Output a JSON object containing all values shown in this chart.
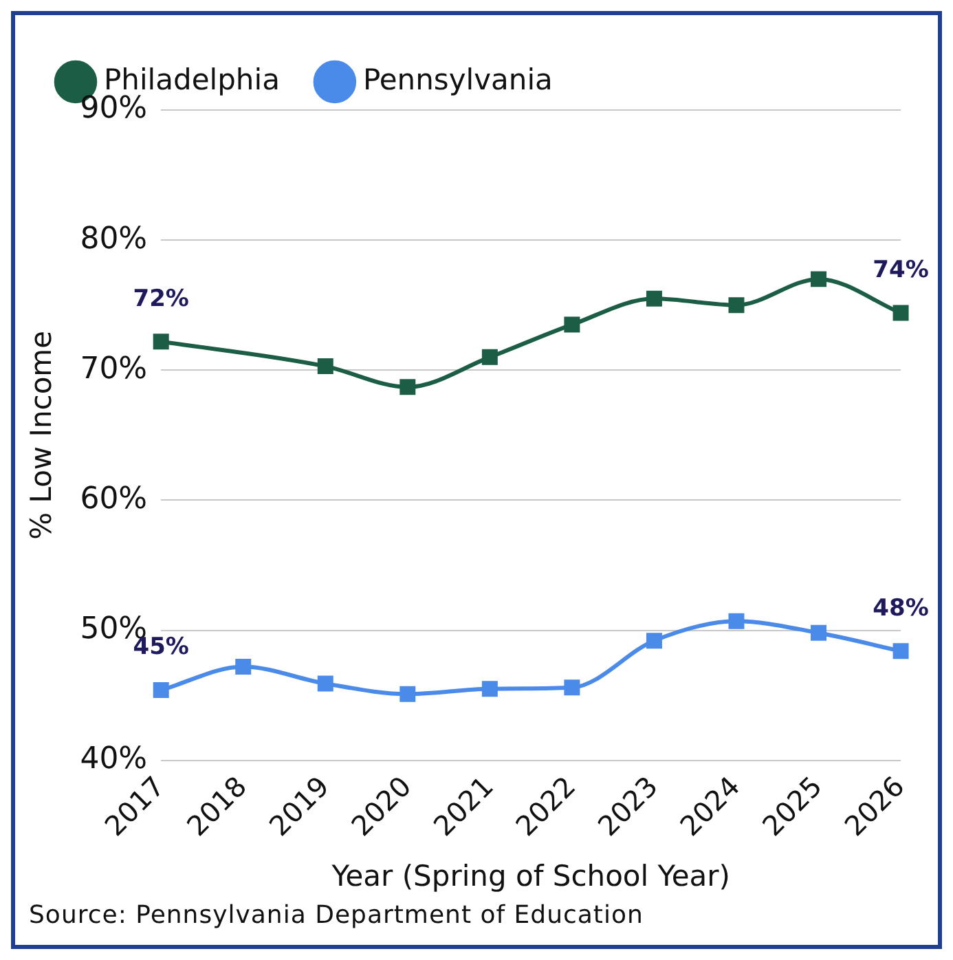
{
  "chart_data": {
    "type": "line",
    "xlabel": "Year (Spring of School Year)",
    "ylabel": "% Low Income",
    "categories": [
      "2017",
      "2018",
      "2019",
      "2020",
      "2021",
      "2022",
      "2023",
      "2024",
      "2025",
      "2026"
    ],
    "series": [
      {
        "name": "Philadelphia",
        "color": "#1b5e45",
        "values": [
          72.2,
          null,
          70.3,
          68.7,
          71.0,
          73.5,
          75.5,
          75.0,
          77.0,
          74.4
        ]
      },
      {
        "name": "Pennsylvania",
        "color": "#4a8ae8",
        "values": [
          45.4,
          47.2,
          45.9,
          45.1,
          45.5,
          45.6,
          49.2,
          50.7,
          49.8,
          48.4
        ]
      }
    ],
    "ylim": [
      40,
      90
    ],
    "yticks": [
      {
        "value": 40,
        "label": "40%"
      },
      {
        "value": 50,
        "label": "50%"
      },
      {
        "value": 60,
        "label": "60%"
      },
      {
        "value": 70,
        "label": "70%"
      },
      {
        "value": 80,
        "label": "80%"
      },
      {
        "value": 90,
        "label": "90%"
      }
    ],
    "grid": "y",
    "legend": "top",
    "marker": "square",
    "annotations": [
      {
        "text": "72%",
        "x": "2017",
        "y": 72.2
      },
      {
        "text": "74%",
        "x": "2026",
        "y": 74.4
      },
      {
        "text": "45%",
        "x": "2017",
        "y": 45.4
      },
      {
        "text": "48%",
        "x": "2026",
        "y": 48.4
      },
      "Source: Pennsylvania Department of Education"
    ]
  }
}
